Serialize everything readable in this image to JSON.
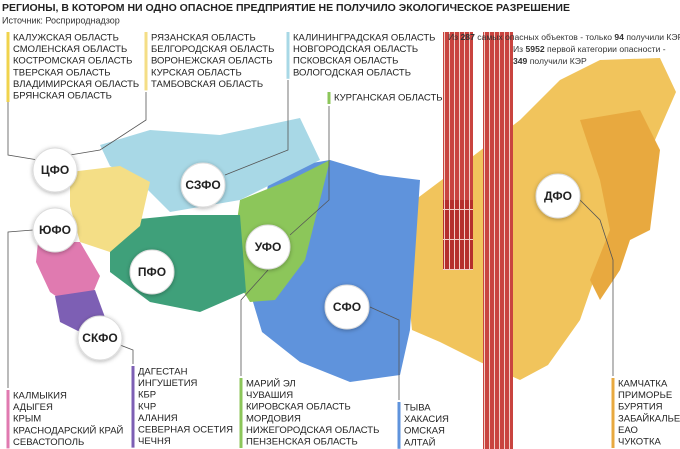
{
  "title": "РЕГИОНЫ, В КОТОРОМ НИ ОДНО ОПАСНОЕ ПРЕДПРИЯТИЕ НЕ ПОЛУЧИЛО ЭКОЛОГИЧЕСКОЕ РАЗРЕШЕНИЕ",
  "source": "Источник: Росприроднадзор",
  "districts": [
    "ЦФО",
    "СЗФО",
    "ЮФО",
    "ПФО",
    "УФО",
    "СКФО",
    "СФО",
    "ДФО"
  ],
  "lists": [
    {
      "items": [
        "КАЛУЖСКАЯ ОБЛАСТЬ",
        "СМОЛЕНСКАЯ ОБЛАСТЬ",
        "КОСТРОМСКАЯ ОБЛАСТЬ",
        "ТВЕРСКАЯ ОБЛАСТЬ",
        "ВЛАДИМИРСКАЯ ОБЛАСТЬ",
        "БРЯНСКАЯ ОБЛАСТЬ"
      ]
    },
    {
      "items": [
        "РЯЗАНСКАЯ ОБЛАСТЬ",
        "БЕЛГОРОДСКАЯ ОБЛАСТЬ",
        "ВОРОНЕЖСКАЯ ОБЛАСТЬ",
        "КУРСКАЯ ОБЛАСТЬ",
        "ТАМБОВСКАЯ ОБЛАСТЬ"
      ]
    },
    {
      "items": [
        "КАЛИНИНГРАДСКАЯ ОБЛАСТЬ",
        "НОВГОРОДСКАЯ ОБЛАСТЬ",
        "ПСКОВСКАЯ ОБЛАСТЬ",
        "ВОЛОГОДСКАЯ ОБЛАСТЬ"
      ]
    },
    {
      "items": [
        "КУРГАНСКАЯ ОБЛАСТЬ"
      ]
    },
    {
      "items": [
        "КАЛМЫКИЯ",
        "АДЫГЕЯ",
        "КРЫМ",
        "КРАСНОДАРСКИЙ КРАЙ",
        "СЕВАСТОПОЛЬ"
      ]
    },
    {
      "items": [
        "ДАГЕСТАН",
        "ИНГУШЕТИЯ",
        "КБР",
        "КЧР",
        "АЛАНИЯ",
        "СЕВЕРНАЯ ОСЕТИЯ",
        "ЧЕЧНЯ"
      ]
    },
    {
      "items": [
        "МАРИЙ ЭЛ",
        "ЧУВАШИЯ",
        "КИРОВСКАЯ ОБЛАСТЬ",
        "МОРДОВИЯ",
        "НИЖЕГОРОДСКАЯ ОБЛАСТЬ",
        "ПЕНЗЕНСКАЯ ОБЛАСТЬ"
      ]
    },
    {
      "items": [
        "ТЫВА",
        "ХАКАСИЯ",
        "ОМСКАЯ",
        "АЛТАЙ"
      ]
    },
    {
      "items": [
        "КАМЧАТКА",
        "ПРИМОРЬЕ",
        "БУРЯТИЯ",
        "ЗАБАЙКАЛЬЕ",
        "ЕАО",
        "ЧУКОТКА"
      ]
    }
  ],
  "stats": [
    {
      "prefix": "Из",
      "total": 287,
      "middle": "самых опасных объектов - только",
      "got": 94,
      "suffix": "получили КЭР"
    },
    {
      "prefix": "Из",
      "total": 5952,
      "middle": "первой категории опасности -",
      "got": 349,
      "suffix": "получили КЭР"
    }
  ]
}
